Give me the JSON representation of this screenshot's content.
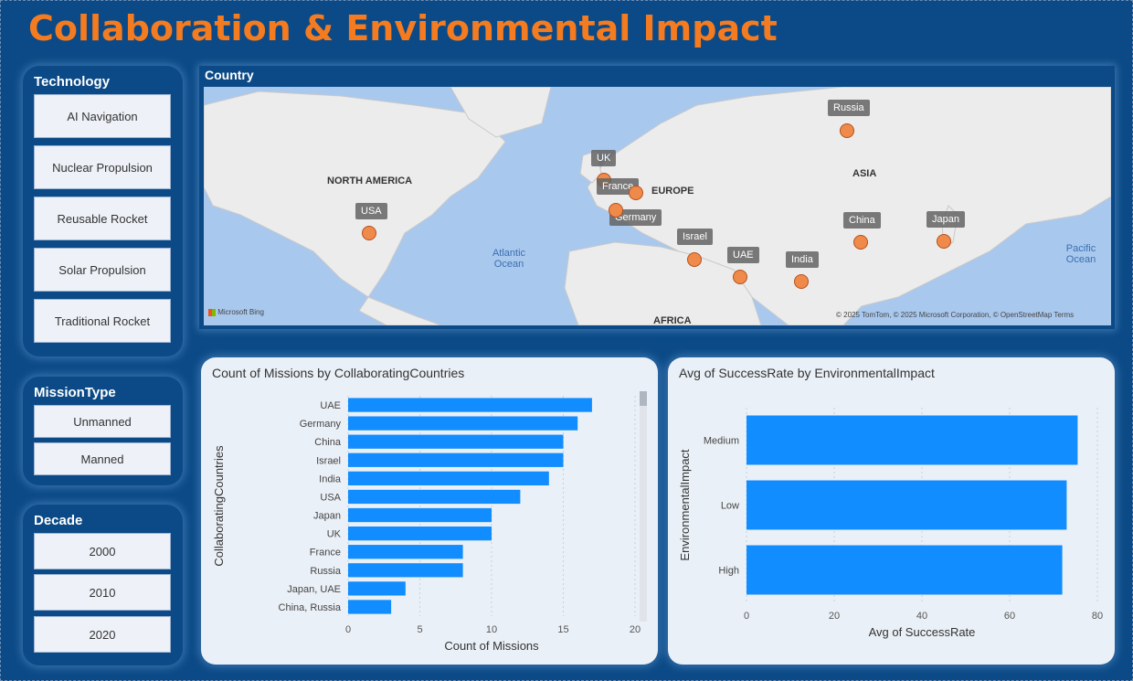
{
  "page": {
    "title": "Collaboration & Environmental Impact"
  },
  "slicers": {
    "technology": {
      "title": "Technology",
      "options": [
        "AI Navigation",
        "Nuclear Propulsion",
        "Reusable Rocket",
        "Solar Propulsion",
        "Traditional Rocket"
      ]
    },
    "mission_type": {
      "title": "MissionType",
      "options": [
        "Unmanned",
        "Manned"
      ]
    },
    "decade": {
      "title": "Decade",
      "options": [
        "2000",
        "2010",
        "2020"
      ]
    }
  },
  "map": {
    "title": "Country",
    "regions": [
      "NORTH AMERICA",
      "EUROPE",
      "ASIA",
      "AFRICA"
    ],
    "oceans": [
      "Atlantic Ocean",
      "Pacific Ocean"
    ],
    "countries": [
      "Russia",
      "UK",
      "France",
      "Germany",
      "USA",
      "Israel",
      "UAE",
      "China",
      "Japan",
      "India"
    ],
    "attribution_left": "Microsoft Bing",
    "attribution_right": "© 2025 TomTom, © 2025 Microsoft Corporation, © OpenStreetMap  Terms",
    "colors": {
      "marker": "#f08a4b",
      "water": "#a9c8ee",
      "land": "#ececec"
    }
  },
  "chart_data": [
    {
      "type": "bar",
      "orientation": "horizontal",
      "title": "Count of Missions by CollaboratingCountries",
      "categories": [
        "UAE",
        "Germany",
        "China",
        "Israel",
        "India",
        "USA",
        "Japan",
        "UK",
        "France",
        "Russia",
        "Japan, UAE",
        "China, Russia"
      ],
      "values": [
        17,
        16,
        15,
        15,
        14,
        12,
        10,
        10,
        8,
        8,
        4,
        3
      ],
      "xlabel": "Count of Missions",
      "ylabel": "CollaboratingCountries",
      "xlim": [
        0,
        20
      ],
      "xticks": [
        0,
        5,
        10,
        15,
        20
      ],
      "color": "#118dff"
    },
    {
      "type": "bar",
      "orientation": "horizontal",
      "title": "Avg of SuccessRate by EnvironmentalImpact",
      "categories": [
        "Medium",
        "Low",
        "High"
      ],
      "values": [
        75.5,
        73,
        72
      ],
      "xlabel": "Avg of SuccessRate",
      "ylabel": "EnvironmentalImpact",
      "xlim": [
        0,
        80
      ],
      "xticks": [
        0,
        20,
        40,
        60,
        80
      ],
      "color": "#118dff"
    }
  ]
}
